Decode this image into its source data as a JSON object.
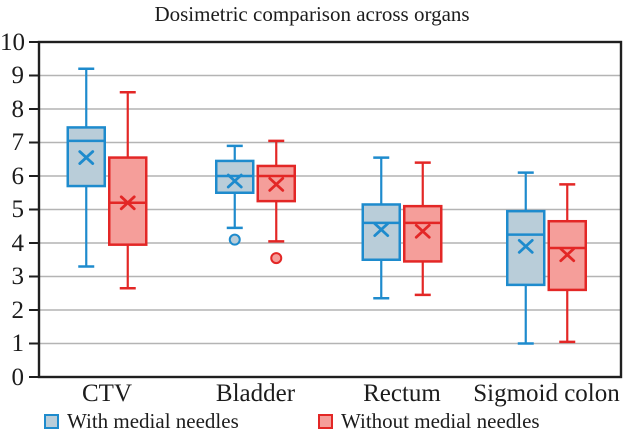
{
  "chart_data": {
    "type": "boxplot",
    "title": "Dosimetric comparison across organs",
    "categories": [
      "CTV",
      "Bladder",
      "Rectum",
      "Sigmoid colon"
    ],
    "y_ticks": [
      0,
      1,
      2,
      3,
      4,
      5,
      6,
      7,
      8,
      9,
      10
    ],
    "ylim": [
      0,
      10
    ],
    "grid": "horizontal-gridlines-on",
    "legend_position": "bottom-left",
    "colors": {
      "axis": "#1f1f1f",
      "grid": "#b4b4b4",
      "background": "#ffffff",
      "text": "#1c1c1c"
    },
    "series": [
      {
        "name": "With medial needles",
        "stroke": "#1e8bcd",
        "fill": "#b9cdd9",
        "boxes": [
          {
            "category": "CTV",
            "whisker_low": 3.3,
            "q1": 5.7,
            "median": 7.05,
            "q3": 7.45,
            "whisker_high": 9.2,
            "mean": 6.55,
            "outliers": []
          },
          {
            "category": "Bladder",
            "whisker_low": 4.45,
            "q1": 5.5,
            "median": 6.0,
            "q3": 6.45,
            "whisker_high": 6.9,
            "mean": 5.85,
            "outliers": [
              4.1
            ]
          },
          {
            "category": "Rectum",
            "whisker_low": 2.35,
            "q1": 3.5,
            "median": 4.6,
            "q3": 5.15,
            "whisker_high": 6.55,
            "mean": 4.4,
            "outliers": []
          },
          {
            "category": "Sigmoid colon",
            "whisker_low": 1.0,
            "q1": 2.75,
            "median": 4.25,
            "q3": 4.95,
            "whisker_high": 6.1,
            "mean": 3.9,
            "outliers": []
          }
        ]
      },
      {
        "name": "Without medial needles",
        "stroke": "#e32726",
        "fill": "#f59e9a",
        "boxes": [
          {
            "category": "CTV",
            "whisker_low": 2.65,
            "q1": 3.95,
            "median": 5.2,
            "q3": 6.55,
            "whisker_high": 8.5,
            "mean": 5.2,
            "outliers": []
          },
          {
            "category": "Bladder",
            "whisker_low": 4.05,
            "q1": 5.25,
            "median": 6.0,
            "q3": 6.3,
            "whisker_high": 7.05,
            "mean": 5.75,
            "outliers": [
              3.55
            ]
          },
          {
            "category": "Rectum",
            "whisker_low": 2.45,
            "q1": 3.45,
            "median": 4.6,
            "q3": 5.1,
            "whisker_high": 6.4,
            "mean": 4.35,
            "outliers": []
          },
          {
            "category": "Sigmoid colon",
            "whisker_low": 1.05,
            "q1": 2.6,
            "median": 3.85,
            "q3": 4.65,
            "whisker_high": 5.75,
            "mean": 3.65,
            "outliers": []
          }
        ]
      }
    ]
  }
}
